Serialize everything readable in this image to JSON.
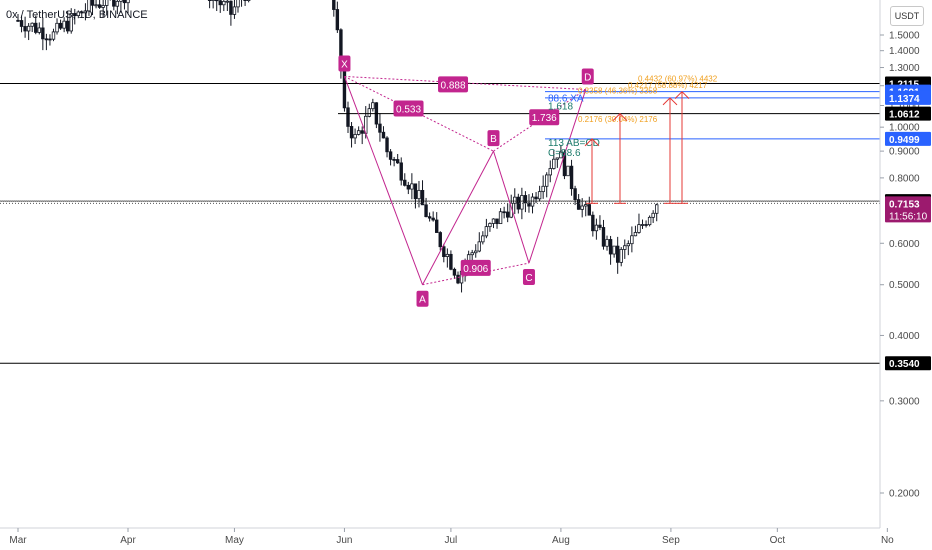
{
  "header": {
    "symbol_title": "0x / TetherUS, 1D, BINANCE",
    "currency_button": "USDT"
  },
  "colors": {
    "up_candle": "#131722",
    "down_candle": "#131722",
    "pattern": "#c2258e",
    "pattern_fill": "#c2258e",
    "level_black": "#000000",
    "level_blue": "#2962ff",
    "target_arrow": "#e53935",
    "fib_orange": "#f0a020",
    "teal_text": "#1b7b6a",
    "price_tag": "#9c1a6e"
  },
  "chart_data": {
    "type": "candlestick",
    "title": "0x / TetherUS, 1D, BINANCE",
    "x_axis": {
      "ticks": [
        "Mar",
        "Apr",
        "May",
        "Jun",
        "Jul",
        "Aug",
        "Sep",
        "Oct",
        "No"
      ]
    },
    "y_axis": {
      "ticks": [
        "1.5000",
        "1.4000",
        "1.3000",
        "1.2000",
        "1.1000",
        "1.0000",
        "0.9000",
        "0.8000",
        "0.6000",
        "0.5000",
        "0.4000",
        "0.3000",
        "0.2000"
      ],
      "range": [
        0.15,
        1.6
      ]
    },
    "harmonic_pattern": {
      "points": [
        {
          "label": "X",
          "date": "2021-06-01",
          "price": 1.25
        },
        {
          "label": "A",
          "date": "2021-06-23",
          "price": 0.5
        },
        {
          "label": "B",
          "date": "2021-07-13",
          "price": 0.9
        },
        {
          "label": "C",
          "date": "2021-07-23",
          "price": 0.55
        },
        {
          "label": "D",
          "date": "2021-08-08",
          "price": 1.18
        }
      ],
      "ratios": [
        {
          "label": "0.888",
          "between": "X-D"
        },
        {
          "label": "0.533",
          "between": "X-B"
        },
        {
          "label": "1.736",
          "between": "B-D"
        },
        {
          "label": "0.906",
          "between": "A-C"
        }
      ],
      "notes": [
        "88.6 XA",
        "1.618",
        "113 AB=CD",
        "C=88.6"
      ]
    },
    "price_levels": [
      {
        "label": "1.2115",
        "value": 1.2115,
        "color": "black"
      },
      {
        "label": "1.1691",
        "value": 1.1691,
        "color": "blue"
      },
      {
        "label": "1.1374",
        "value": 1.1374,
        "color": "blue"
      },
      {
        "label": "1.0612",
        "value": 1.0612,
        "color": "black"
      },
      {
        "label": "0.9499",
        "value": 0.9499,
        "color": "blue"
      },
      {
        "label": "0.7223",
        "value": 0.7223,
        "color": "black"
      },
      {
        "label": "0.7153",
        "value": 0.7153,
        "color": "current"
      },
      {
        "label": "0.3540",
        "value": 0.354,
        "color": "black"
      }
    ],
    "current_price": {
      "value": "0.7153",
      "countdown": "11:56:10"
    },
    "targets": [
      {
        "label": "0.2176 (30.04%) 2176",
        "value": 0.9499
      },
      {
        "label": "0.3358 (46.36%) 3358",
        "value": 1.0612
      },
      {
        "label": "0.4217 (58.88%) 4217",
        "value": 1.1374
      },
      {
        "label": "0.4432 (60.97%) 4432",
        "value": 1.1691
      }
    ]
  }
}
